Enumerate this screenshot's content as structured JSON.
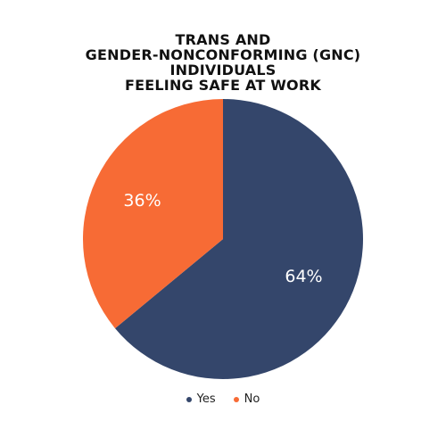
{
  "chart_data": {
    "type": "pie",
    "title_lines": [
      "TRANS AND",
      "GENDER-NONCONFORMING (GNC)",
      "INDIVIDUALS",
      "FEELING SAFE AT WORK"
    ],
    "categories": [
      "Yes",
      "No"
    ],
    "values": [
      64,
      36
    ],
    "value_labels": [
      "64%",
      "36%"
    ],
    "colors": [
      "#34466b",
      "#f76b35"
    ],
    "start_angle": "12 o'clock",
    "direction": "clockwise",
    "legend_position": "bottom"
  }
}
